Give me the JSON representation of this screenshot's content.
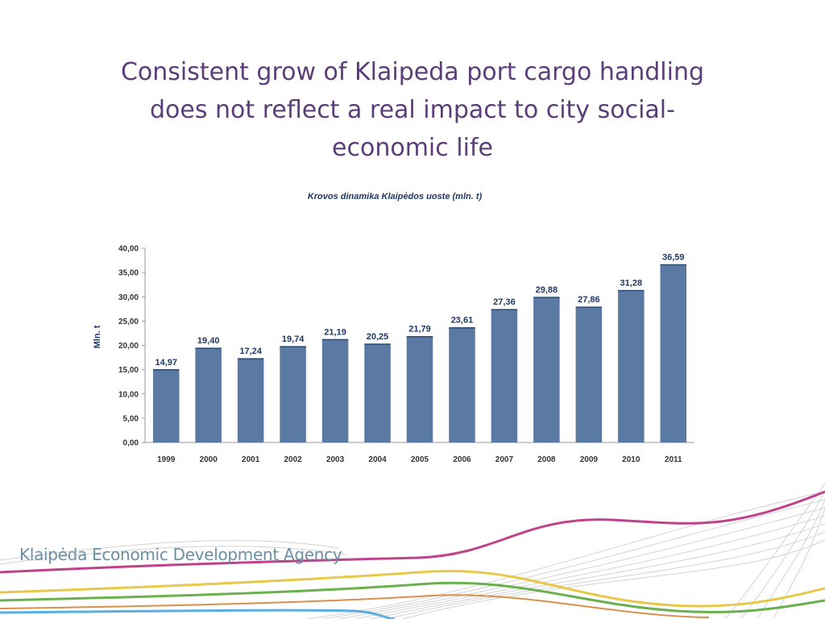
{
  "slide": {
    "title_lines": [
      "Consistent grow of Klaipeda port cargo handling",
      "does not reflect a real impact to city social-",
      "economic life"
    ],
    "agency_name": "Klaipėda Economic Development Agency"
  },
  "colors": {
    "title": "#5b3d79",
    "bar": "#5a7aa3",
    "agency": "#6a8fa8"
  },
  "chart_data": {
    "type": "bar",
    "title": "Krovos dinamika Klaipėdos uoste (mln. t)",
    "ylabel": "Mln. t",
    "xlabel": "",
    "categories": [
      "1999",
      "2000",
      "2001",
      "2002",
      "2003",
      "2004",
      "2005",
      "2006",
      "2007",
      "2008",
      "2009",
      "2010",
      "2011"
    ],
    "values": [
      14.97,
      19.4,
      17.24,
      19.74,
      21.19,
      20.25,
      21.79,
      23.61,
      27.36,
      29.88,
      27.86,
      31.28,
      36.59
    ],
    "value_labels": [
      "14,97",
      "19,40",
      "17,24",
      "19,74",
      "21,19",
      "20,25",
      "21,79",
      "23,61",
      "27,36",
      "29,88",
      "27,86",
      "31,28",
      "36,59"
    ],
    "y_ticks": [
      "0,00",
      "5,00",
      "10,00",
      "15,00",
      "20,00",
      "25,00",
      "30,00",
      "35,00",
      "40,00"
    ],
    "ylim": [
      0,
      40
    ],
    "grid": false,
    "legend": "none"
  }
}
